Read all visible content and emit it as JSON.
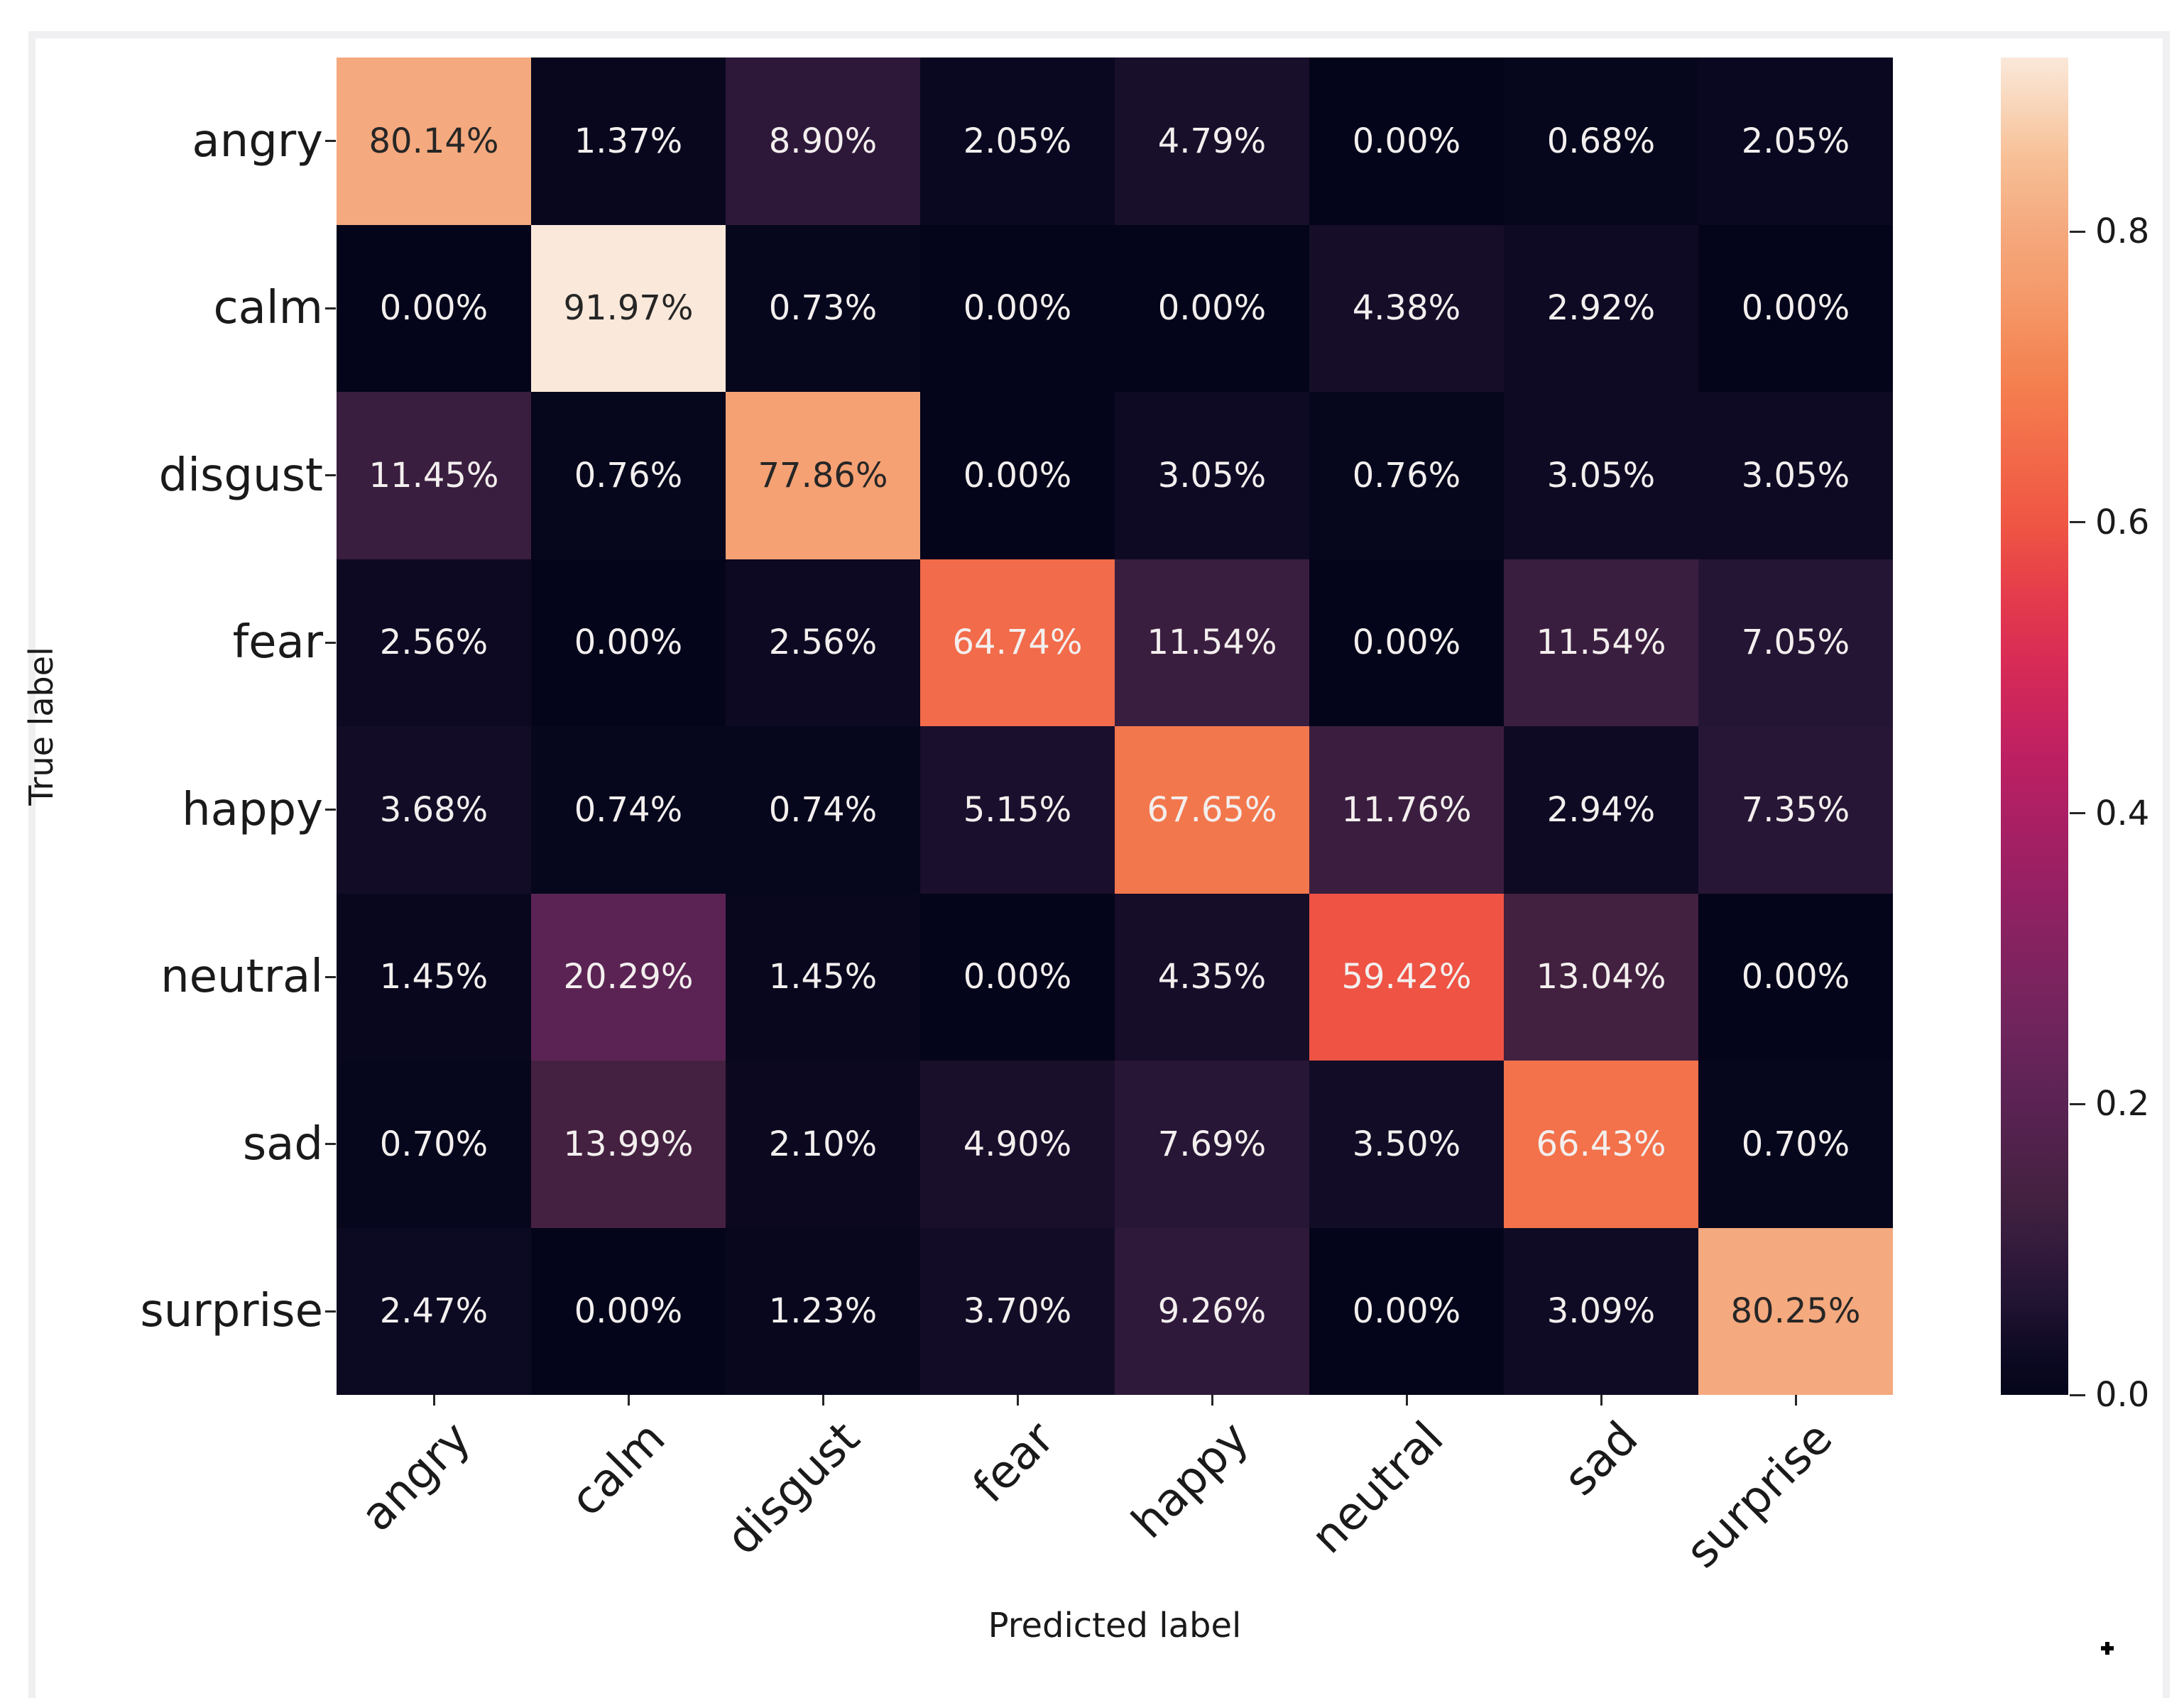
{
  "figure": {
    "x_axis_title": "Predicted label",
    "y_axis_title": "True label",
    "cursor_glyph": "+"
  },
  "chart_data": {
    "type": "heatmap",
    "title": "",
    "xlabel": "Predicted label",
    "ylabel": "True label",
    "categories": [
      "angry",
      "calm",
      "disgust",
      "fear",
      "happy",
      "neutral",
      "sad",
      "surprise"
    ],
    "x_categories": [
      "angry",
      "calm",
      "disgust",
      "fear",
      "happy",
      "neutral",
      "sad",
      "surprise"
    ],
    "matrix_percent": [
      [
        80.14,
        1.37,
        8.9,
        2.05,
        4.79,
        0.0,
        0.68,
        2.05
      ],
      [
        0.0,
        91.97,
        0.73,
        0.0,
        0.0,
        4.38,
        2.92,
        0.0
      ],
      [
        11.45,
        0.76,
        77.86,
        0.0,
        3.05,
        0.76,
        3.05,
        3.05
      ],
      [
        2.56,
        0.0,
        2.56,
        64.74,
        11.54,
        0.0,
        11.54,
        7.05
      ],
      [
        3.68,
        0.74,
        0.74,
        5.15,
        67.65,
        11.76,
        2.94,
        7.35
      ],
      [
        1.45,
        20.29,
        1.45,
        0.0,
        4.35,
        59.42,
        13.04,
        0.0
      ],
      [
        0.7,
        13.99,
        2.1,
        4.9,
        7.69,
        3.5,
        66.43,
        0.7
      ],
      [
        2.47,
        0.0,
        1.23,
        3.7,
        9.26,
        0.0,
        3.09,
        80.25
      ]
    ],
    "cell_value_format": "0.00%",
    "grid": false,
    "legend_position": "right-colorbar",
    "colorbar": {
      "tick_labels": [
        "0.8",
        "0.6",
        "0.4",
        "0.2",
        "0.0"
      ],
      "tick_values": [
        0.8,
        0.6,
        0.4,
        0.2,
        0.0
      ],
      "vmin": 0.0,
      "vmax": 0.9197,
      "colormap": "rocket"
    },
    "colormap_anchors": [
      [
        0.0,
        "#04051A"
      ],
      [
        0.02,
        "#0A0820"
      ],
      [
        0.05,
        "#190F2B"
      ],
      [
        0.07,
        "#251534"
      ],
      [
        0.09,
        "#2E183A"
      ],
      [
        0.115,
        "#3A1E3F"
      ],
      [
        0.14,
        "#452141"
      ],
      [
        0.17,
        "#50224B"
      ],
      [
        0.205,
        "#5C2355"
      ],
      [
        0.25,
        "#6E255C"
      ],
      [
        0.3,
        "#812360"
      ],
      [
        0.35,
        "#962063"
      ],
      [
        0.4,
        "#AC1F64"
      ],
      [
        0.45,
        "#C22161"
      ],
      [
        0.5,
        "#D62A57"
      ],
      [
        0.55,
        "#E53C4B"
      ],
      [
        0.6,
        "#EF5643"
      ],
      [
        0.65,
        "#F26C4A"
      ],
      [
        0.7,
        "#F4814F"
      ],
      [
        0.75,
        "#F59868"
      ],
      [
        0.8,
        "#F5A87D"
      ],
      [
        0.85,
        "#F7C096"
      ],
      [
        0.88,
        "#F8D2B3"
      ],
      [
        0.92,
        "#FAE8DA"
      ],
      [
        1.0,
        "#FCF3EA"
      ]
    ],
    "annotation_text_colors": {
      "light": "#F3EFEE",
      "dark": "#262626",
      "dark_threshold": 0.72
    }
  }
}
